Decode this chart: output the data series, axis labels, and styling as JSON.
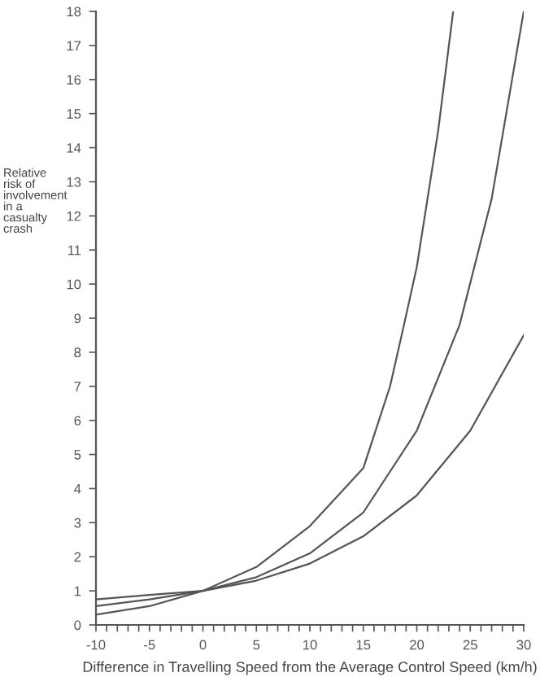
{
  "chart_data": {
    "type": "line",
    "xlabel": "Difference in Travelling Speed from the Average Control Speed (km/h)",
    "ylabel": "Relative\nrisk of\ninvolvement\nin a\ncasualty\ncrash",
    "series": [
      {
        "color": "#555555",
        "x": [
          -10,
          -5,
          0,
          5,
          10,
          15,
          17.5,
          18.8,
          20,
          22,
          23.4
        ],
        "values": [
          0.3,
          0.55,
          1,
          1.7,
          2.9,
          4.6,
          7,
          8.8,
          10.5,
          14.5,
          18
        ]
      },
      {
        "color": "#555555",
        "x": [
          -10,
          -5,
          0,
          5,
          10,
          15,
          20,
          24,
          27,
          30
        ],
        "values": [
          0.55,
          0.75,
          1,
          1.4,
          2.1,
          3.3,
          5.7,
          8.8,
          12.5,
          18
        ]
      },
      {
        "color": "#555555",
        "x": [
          -10,
          -5,
          0,
          5,
          10,
          15,
          20,
          25,
          30
        ],
        "values": [
          0.75,
          0.88,
          1,
          1.3,
          1.8,
          2.6,
          3.8,
          5.7,
          8.5
        ]
      }
    ],
    "xlim": [
      -10,
      30
    ],
    "ylim": [
      0,
      18
    ],
    "xticks": [
      -10,
      {
        "value": -9,
        "label": null
      },
      {
        "value": -8,
        "label": null
      },
      {
        "value": -7,
        "label": null
      },
      {
        "value": -6,
        "label": null
      },
      -5,
      {
        "value": -4,
        "label": null
      },
      {
        "value": -3,
        "label": null
      },
      {
        "value": -2,
        "label": null
      },
      {
        "value": -1,
        "label": null
      },
      0,
      {
        "value": 1,
        "label": null
      },
      {
        "value": 2,
        "label": null
      },
      {
        "value": 3,
        "label": null
      },
      {
        "value": 4,
        "label": null
      },
      5,
      {
        "value": 6,
        "label": null
      },
      {
        "value": 7,
        "label": null
      },
      {
        "value": 8,
        "label": null
      },
      {
        "value": 9,
        "label": null
      },
      10,
      {
        "value": 11,
        "label": null
      },
      {
        "value": 12,
        "label": null
      },
      {
        "value": 13,
        "label": null
      },
      {
        "value": 14,
        "label": null
      },
      15,
      {
        "value": 16,
        "label": null
      },
      {
        "value": 17,
        "label": null
      },
      {
        "value": 18,
        "label": null
      },
      {
        "value": 19,
        "label": null
      },
      20,
      {
        "value": 21,
        "label": null
      },
      {
        "value": 22,
        "label": null
      },
      {
        "value": 23,
        "label": null
      },
      {
        "value": 24,
        "label": null
      },
      25,
      {
        "value": 26,
        "label": null
      },
      {
        "value": 27,
        "label": null
      },
      {
        "value": 28,
        "label": null
      },
      {
        "value": 29,
        "label": null
      },
      30
    ],
    "yticks": [
      0,
      1,
      2,
      3,
      4,
      5,
      6,
      7,
      8,
      9,
      10,
      11,
      12,
      13,
      14,
      15,
      16,
      17,
      18
    ],
    "grid": false,
    "legend": false,
    "marker": "none",
    "line_style": "solid"
  }
}
